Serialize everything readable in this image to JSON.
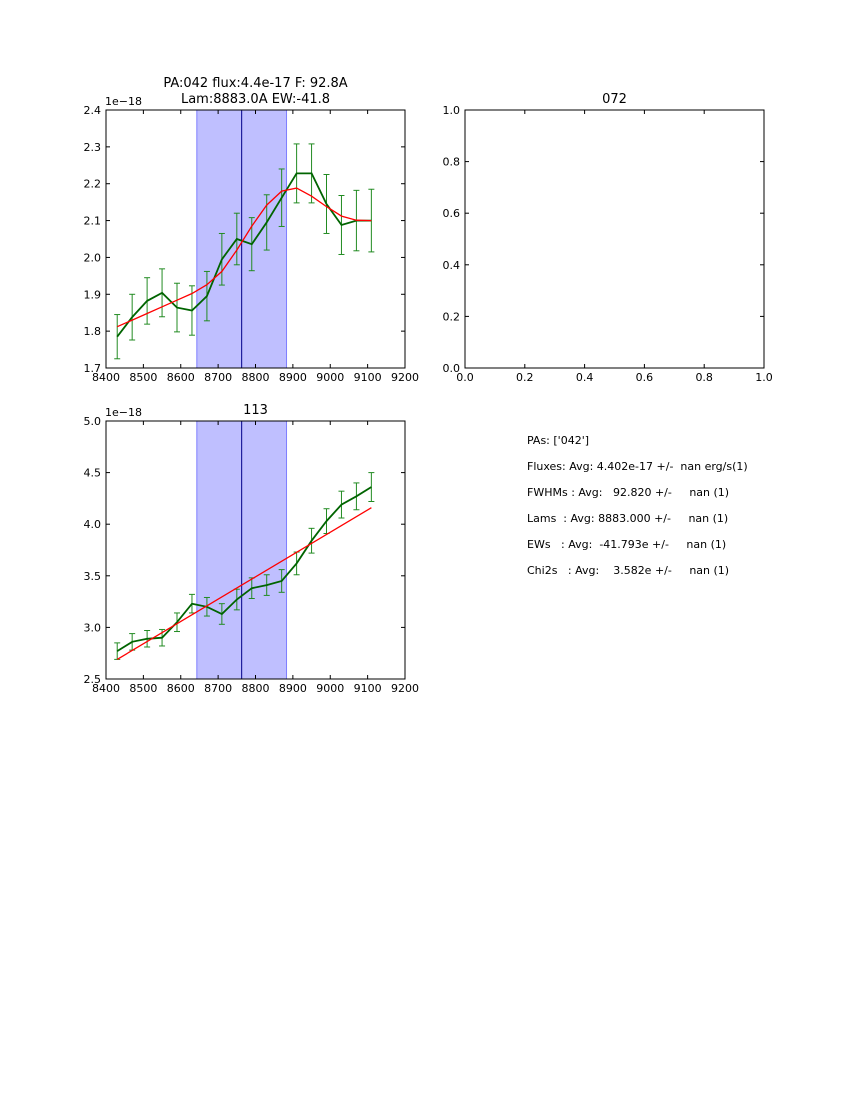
{
  "colors": {
    "data_line": "#006400",
    "errorbar": "#228b22",
    "fit_line": "#ff0000",
    "band_fill": "#bfbfff",
    "band_edge": "#7f7fff",
    "center_line": "#00008b",
    "axes": "#000000"
  },
  "chart_data": [
    {
      "id": "pa042",
      "type": "line",
      "title_lines": [
        "PA:042 flux:4.4e-17 F: 92.8A",
        "Lam:8883.0A EW:-41.8"
      ],
      "xlim": [
        8400,
        9200
      ],
      "ylim": [
        1.7,
        2.4
      ],
      "y_scale_label": "1e−18",
      "xticks": [
        8400,
        8500,
        8600,
        8700,
        8800,
        8900,
        9000,
        9100,
        9200
      ],
      "xtick_labels": [
        "8400",
        "8500",
        "8600",
        "8700",
        "8800",
        "8900",
        "9000",
        "9100",
        "9200"
      ],
      "yticks": [
        1.7,
        1.8,
        1.9,
        2.0,
        2.1,
        2.2,
        2.3,
        2.4
      ],
      "ytick_labels": [
        "1.7",
        "1.8",
        "1.9",
        "2.0",
        "2.1",
        "2.2",
        "2.3",
        "2.4"
      ],
      "band": [
        8643,
        8883
      ],
      "center_line": 8763,
      "series": [
        {
          "name": "data",
          "x": [
            8430,
            8470,
            8510,
            8550,
            8590,
            8630,
            8670,
            8710,
            8750,
            8790,
            8830,
            8870,
            8910,
            8950,
            8990,
            9030,
            9070,
            9110
          ],
          "y": [
            1.785,
            1.838,
            1.882,
            1.904,
            1.864,
            1.856,
            1.895,
            1.995,
            2.05,
            2.036,
            2.095,
            2.162,
            2.228,
            2.228,
            2.145,
            2.088,
            2.1,
            2.1
          ],
          "err": [
            0.06,
            0.062,
            0.063,
            0.065,
            0.066,
            0.067,
            0.067,
            0.07,
            0.07,
            0.072,
            0.075,
            0.078,
            0.08,
            0.08,
            0.08,
            0.08,
            0.082,
            0.085
          ]
        },
        {
          "name": "fit",
          "x": [
            8430,
            8470,
            8510,
            8550,
            8590,
            8630,
            8670,
            8710,
            8750,
            8790,
            8830,
            8870,
            8910,
            8950,
            8990,
            9030,
            9070,
            9110
          ],
          "y": [
            1.812,
            1.83,
            1.848,
            1.866,
            1.884,
            1.902,
            1.926,
            1.962,
            2.02,
            2.085,
            2.142,
            2.18,
            2.188,
            2.166,
            2.138,
            2.112,
            2.101,
            2.1
          ]
        }
      ]
    },
    {
      "id": "pa072",
      "type": "line",
      "title_lines": [
        "072"
      ],
      "xlim": [
        0.0,
        1.0
      ],
      "ylim": [
        0.0,
        1.0
      ],
      "y_scale_label": "",
      "xticks": [
        0.0,
        0.2,
        0.4,
        0.6,
        0.8,
        1.0
      ],
      "xtick_labels": [
        "0.0",
        "0.2",
        "0.4",
        "0.6",
        "0.8",
        "1.0"
      ],
      "yticks": [
        0.0,
        0.2,
        0.4,
        0.6,
        0.8,
        1.0
      ],
      "ytick_labels": [
        "0.0",
        "0.2",
        "0.4",
        "0.6",
        "0.8",
        "1.0"
      ],
      "band": null,
      "center_line": null,
      "series": []
    },
    {
      "id": "pa113",
      "type": "line",
      "title_lines": [
        "113"
      ],
      "xlim": [
        8400,
        9200
      ],
      "ylim": [
        2.5,
        5.0
      ],
      "y_scale_label": "1e−18",
      "xticks": [
        8400,
        8500,
        8600,
        8700,
        8800,
        8900,
        9000,
        9100,
        9200
      ],
      "xtick_labels": [
        "8400",
        "8500",
        "8600",
        "8700",
        "8800",
        "8900",
        "9000",
        "9100",
        "9200"
      ],
      "yticks": [
        2.5,
        3.0,
        3.5,
        4.0,
        4.5,
        5.0
      ],
      "ytick_labels": [
        "2.5",
        "3.0",
        "3.5",
        "4.0",
        "4.5",
        "5.0"
      ],
      "band": [
        8643,
        8883
      ],
      "center_line": 8763,
      "series": [
        {
          "name": "data",
          "x": [
            8430,
            8470,
            8510,
            8550,
            8590,
            8630,
            8670,
            8710,
            8750,
            8790,
            8830,
            8870,
            8910,
            8950,
            8990,
            9030,
            9070,
            9110
          ],
          "y": [
            2.77,
            2.86,
            2.89,
            2.9,
            3.05,
            3.23,
            3.2,
            3.13,
            3.27,
            3.38,
            3.41,
            3.45,
            3.62,
            3.84,
            4.03,
            4.19,
            4.27,
            4.36
          ],
          "err": [
            0.08,
            0.08,
            0.08,
            0.08,
            0.09,
            0.09,
            0.09,
            0.1,
            0.1,
            0.1,
            0.1,
            0.11,
            0.11,
            0.12,
            0.12,
            0.13,
            0.13,
            0.14
          ]
        },
        {
          "name": "fit",
          "x": [
            8430,
            9110
          ],
          "y": [
            2.69,
            4.16
          ]
        }
      ]
    }
  ],
  "summary": {
    "pas": "PAs: ['042']",
    "fluxes": "Fluxes: Avg: 4.402e-17 +/-  nan erg/s(1)",
    "fwhms": "FWHMs : Avg:   92.820 +/-     nan (1)",
    "lams": "Lams  : Avg: 8883.000 +/-     nan (1)",
    "ews": "EWs   : Avg:  -41.793e +/-     nan (1)",
    "chi2s": "Chi2s   : Avg:    3.582e +/-     nan (1)"
  }
}
